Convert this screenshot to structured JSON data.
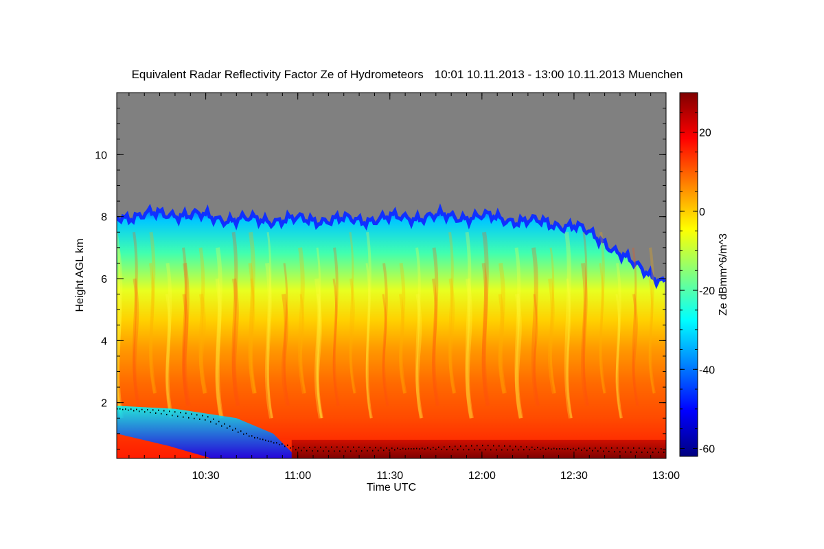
{
  "chart_data": {
    "type": "heatmap",
    "title": "Equivalent Radar Reflectivity Factor Ze of Hydrometeors",
    "period": "10:01 10.11.2013 - 13:00 10.11.2013",
    "location": "Muenchen",
    "xlabel": "Time UTC",
    "ylabel": "Height AGL km",
    "colorbar_label": "Ze dBmm^6/m^3",
    "x_ticks": [
      "10:30",
      "11:00",
      "11:30",
      "12:00",
      "12:30",
      "13:00"
    ],
    "x_tick_minutes": [
      30,
      60,
      90,
      120,
      150,
      180
    ],
    "x_range_minutes": [
      1,
      180
    ],
    "x_start": "10:00",
    "y_ticks": [
      "2",
      "4",
      "6",
      "8",
      "10"
    ],
    "y_tick_values": [
      2,
      4,
      6,
      8,
      10
    ],
    "y_range": [
      0.2,
      12
    ],
    "colorbar_ticks": [
      "20",
      "0",
      "-20",
      "-40",
      "-60"
    ],
    "colorbar_tick_values": [
      20,
      0,
      -20,
      -40,
      -60
    ],
    "colorbar_range": [
      -62,
      30
    ],
    "colormap": [
      "#00007f",
      "#0000ff",
      "#0080ff",
      "#00ffff",
      "#80ff80",
      "#ffff00",
      "#ff8000",
      "#ff0000",
      "#7f0000"
    ],
    "no_data_color": "#808080",
    "echo_top": {
      "time_minutes": [
        1,
        20,
        40,
        60,
        80,
        100,
        120,
        140,
        150,
        160,
        170,
        180
      ],
      "height_km": [
        8.0,
        8.1,
        7.9,
        7.9,
        7.9,
        8.0,
        8.0,
        7.8,
        7.7,
        7.2,
        6.4,
        5.9
      ]
    },
    "reflectivity_profile": {
      "height_km": [
        0.5,
        2,
        3,
        4,
        5,
        6,
        7,
        7.8
      ],
      "ze_dbz": [
        20,
        10,
        6,
        0,
        -8,
        -14,
        -22,
        -38
      ]
    }
  }
}
